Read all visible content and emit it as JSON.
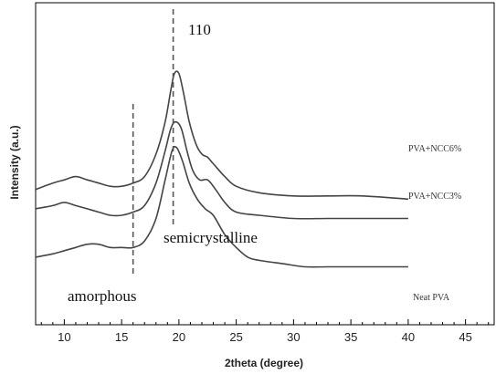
{
  "chart_data": {
    "type": "line",
    "xlabel": "2theta (degree)",
    "ylabel": "Intensity (a.u.)",
    "xlim": [
      7.5,
      47.5
    ],
    "x_ticks": [
      10,
      15,
      20,
      25,
      30,
      35,
      40,
      45
    ],
    "series": [
      {
        "name": "PVA+NCC6%",
        "points": [
          [
            7.5,
            58
          ],
          [
            9,
            56
          ],
          [
            10,
            55
          ],
          [
            11,
            54
          ],
          [
            12,
            55
          ],
          [
            13,
            56
          ],
          [
            14,
            57
          ],
          [
            15,
            57
          ],
          [
            16,
            56
          ],
          [
            17,
            54
          ],
          [
            18,
            47
          ],
          [
            18.8,
            37
          ],
          [
            19.3,
            27
          ],
          [
            19.6,
            22
          ],
          [
            20,
            22
          ],
          [
            20.4,
            28
          ],
          [
            20.9,
            37
          ],
          [
            21.5,
            44
          ],
          [
            22,
            47
          ],
          [
            22.5,
            48
          ],
          [
            23,
            50
          ],
          [
            24,
            54
          ],
          [
            25,
            57
          ],
          [
            27,
            59
          ],
          [
            30,
            60
          ],
          [
            33,
            60
          ],
          [
            36,
            60
          ],
          [
            40,
            61
          ]
        ]
      },
      {
        "name": "PVA+NCC3%",
        "points": [
          [
            7.5,
            64
          ],
          [
            9,
            63
          ],
          [
            10,
            62
          ],
          [
            11,
            63
          ],
          [
            12,
            64
          ],
          [
            13,
            65
          ],
          [
            14,
            66
          ],
          [
            15,
            66
          ],
          [
            16,
            65
          ],
          [
            17,
            63
          ],
          [
            18,
            56
          ],
          [
            18.8,
            46
          ],
          [
            19.3,
            39
          ],
          [
            19.7,
            37
          ],
          [
            20.2,
            39
          ],
          [
            20.7,
            46
          ],
          [
            21.2,
            52
          ],
          [
            21.8,
            55
          ],
          [
            22.5,
            55
          ],
          [
            23.2,
            58
          ],
          [
            24,
            62
          ],
          [
            25,
            65
          ],
          [
            27,
            66
          ],
          [
            30,
            67
          ],
          [
            33,
            67
          ],
          [
            36,
            67
          ],
          [
            40,
            67
          ]
        ]
      },
      {
        "name": "Neat PVA",
        "points": [
          [
            7.5,
            79
          ],
          [
            9,
            78
          ],
          [
            10,
            77
          ],
          [
            11,
            76
          ],
          [
            12,
            75
          ],
          [
            13,
            75
          ],
          [
            14,
            76
          ],
          [
            15,
            76
          ],
          [
            16,
            76
          ],
          [
            17,
            74
          ],
          [
            18,
            67
          ],
          [
            18.8,
            55
          ],
          [
            19.4,
            46
          ],
          [
            19.8,
            45
          ],
          [
            20.3,
            49
          ],
          [
            20.9,
            56
          ],
          [
            21.6,
            61
          ],
          [
            22.3,
            64
          ],
          [
            23,
            66
          ],
          [
            24,
            72
          ],
          [
            25,
            76
          ],
          [
            26,
            79
          ],
          [
            27,
            80
          ],
          [
            29,
            81
          ],
          [
            31,
            82
          ],
          [
            33,
            82
          ],
          [
            36,
            82
          ],
          [
            40,
            82
          ]
        ]
      }
    ],
    "series_labels": [
      "PVA+NCC6%",
      "PVA+NCC3%",
      "Neat PVA"
    ],
    "annotations": {
      "peak": "110",
      "semicrystalline": "semicrystalline",
      "amorphous": "amorphous"
    },
    "dashed_lines_x": [
      19.5,
      16.0
    ],
    "grid": false,
    "legend": "labels at right end of each curve"
  }
}
